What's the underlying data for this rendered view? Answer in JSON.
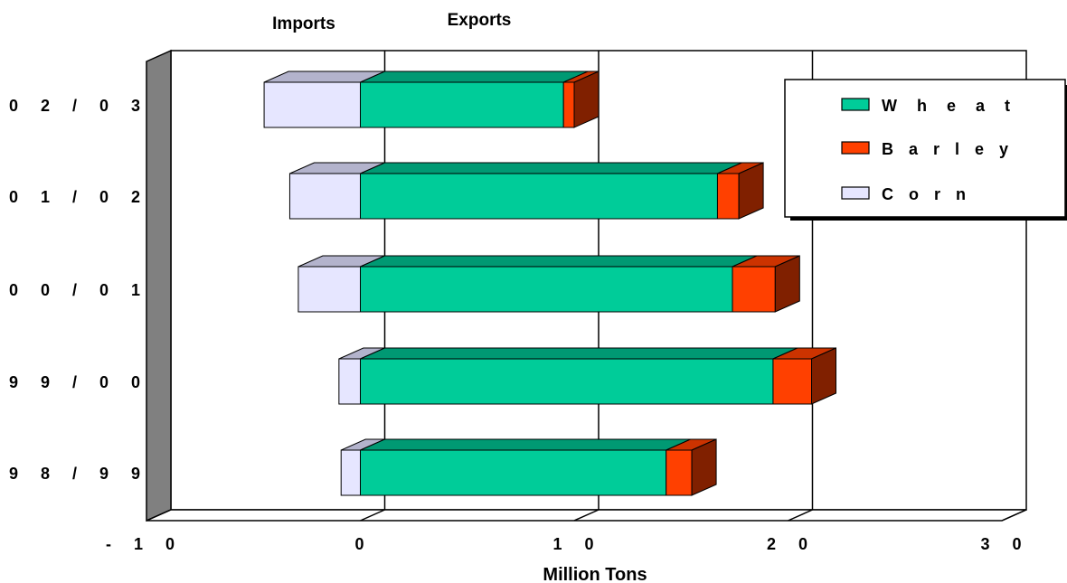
{
  "chart_data": {
    "type": "bar",
    "orientation": "horizontal",
    "stacked": true,
    "three_d": true,
    "categories": [
      "98/99",
      "99/00",
      "00/01",
      "01/02",
      "02/03"
    ],
    "series": [
      {
        "name": "Wheat",
        "values": [
          14.3,
          19.3,
          17.4,
          16.7,
          9.5
        ],
        "color": "#00cc99"
      },
      {
        "name": "Barley",
        "values": [
          1.2,
          1.8,
          2.0,
          1.0,
          0.5
        ],
        "color": "#ff4000"
      },
      {
        "name": "Corn",
        "values": [
          -0.9,
          -1.0,
          -2.9,
          -3.3,
          -4.5
        ],
        "color": "#e6e6ff"
      }
    ],
    "xlabel": "Million Tons",
    "ylabel": "",
    "xlim": [
      -10,
      30
    ],
    "x_ticks": [
      "- 1 0",
      "0",
      "1 0",
      "2 0",
      "3 0"
    ],
    "category_labels": [
      "9 8 / 9 9",
      "9 9 / 0 0",
      "0 0 / 0 1",
      "0 1 / 0 2",
      "0 2 / 0 3"
    ],
    "annotations": {
      "left": "Imports",
      "right": "Exports"
    },
    "legend_position": "top-right",
    "grid": true
  }
}
